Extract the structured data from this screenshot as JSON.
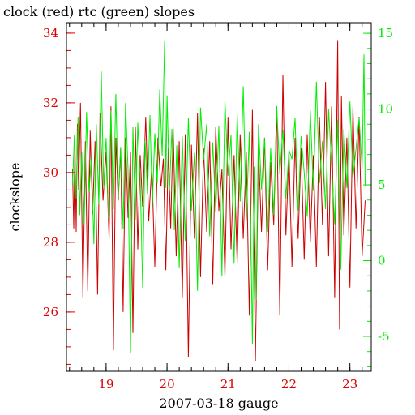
{
  "colors": {
    "left_axis": "#dd0000",
    "right_axis": "#00ee00",
    "series_red": "#cc0000",
    "series_green": "#00ee00",
    "frame": "#000000"
  },
  "chart_data": {
    "type": "line",
    "title": "clock (red) rtc (green) slopes",
    "xlabel": "2007-03-18 gauge",
    "ylabel": "clockslope",
    "xlim": [
      18.35,
      23.35
    ],
    "ylim": [
      24.3,
      34.3
    ],
    "ylim_right": [
      -7.3,
      15.7
    ],
    "x_ticks": [
      "19",
      "20",
      "21",
      "22",
      "23"
    ],
    "y_ticks": [
      "26",
      "28",
      "30",
      "32",
      "34"
    ],
    "y_ticks_right": [
      "-5",
      "0",
      "5",
      "10",
      "15"
    ],
    "grid": false,
    "series": [
      {
        "name": "clock",
        "axis": "left",
        "x": [
          18.45,
          18.47,
          18.49,
          18.51,
          18.53,
          18.55,
          18.58,
          18.62,
          18.66,
          18.7,
          18.74,
          18.78,
          18.82,
          18.86,
          18.9,
          18.95,
          19.0,
          19.05,
          19.08,
          19.12,
          19.16,
          19.2,
          19.24,
          19.28,
          19.32,
          19.36,
          19.4,
          19.44,
          19.48,
          19.52,
          19.56,
          19.6,
          19.65,
          19.7,
          19.75,
          19.8,
          19.85,
          19.9,
          19.94,
          19.98,
          20.02,
          20.06,
          20.1,
          20.15,
          20.2,
          20.25,
          20.3,
          20.35,
          20.4,
          20.45,
          20.5,
          20.55,
          20.6,
          20.65,
          20.7,
          20.75,
          20.8,
          20.85,
          20.9,
          20.95,
          21.0,
          21.05,
          21.1,
          21.15,
          21.2,
          21.25,
          21.3,
          21.35,
          21.4,
          21.45,
          21.5,
          21.55,
          21.6,
          21.65,
          21.7,
          21.75,
          21.8,
          21.85,
          21.9,
          21.95,
          22.0,
          22.05,
          22.1,
          22.15,
          22.2,
          22.25,
          22.3,
          22.35,
          22.4,
          22.45,
          22.5,
          22.55,
          22.6,
          22.65,
          22.7,
          22.75,
          22.8,
          22.83,
          22.86,
          22.9,
          22.95,
          23.0,
          23.05,
          23.1,
          23.15,
          23.2,
          23.25
        ],
        "y": [
          30.1,
          28.4,
          30.8,
          28.3,
          31.4,
          29.5,
          32.0,
          26.4,
          30.9,
          26.6,
          31.2,
          28.8,
          30.9,
          26.5,
          31.7,
          29.2,
          30.6,
          28.1,
          31.9,
          24.9,
          31.0,
          29.2,
          30.7,
          26.0,
          31.0,
          28.7,
          30.6,
          25.4,
          31.3,
          27.8,
          30.5,
          29.0,
          31.6,
          28.6,
          30.2,
          27.3,
          31.0,
          29.6,
          30.4,
          27.2,
          30.7,
          28.4,
          31.3,
          27.6,
          30.9,
          26.4,
          31.1,
          24.7,
          30.8,
          28.1,
          31.7,
          27.0,
          30.7,
          28.3,
          30.9,
          26.8,
          31.3,
          28.9,
          30.1,
          27.0,
          31.6,
          27.8,
          30.5,
          27.4,
          31.1,
          28.1,
          30.6,
          25.9,
          31.8,
          24.6,
          30.7,
          28.3,
          31.0,
          27.2,
          30.3,
          28.5,
          31.9,
          25.9,
          32.8,
          28.2,
          30.6,
          27.3,
          31.0,
          28.1,
          30.7,
          27.5,
          31.1,
          28.0,
          30.5,
          27.3,
          31.6,
          28.5,
          32.6,
          27.6,
          31.9,
          26.4,
          33.8,
          25.5,
          32.2,
          28.2,
          31.0,
          26.7,
          31.9,
          28.4,
          31.6,
          27.6,
          29.2
        ]
      },
      {
        "name": "rtc",
        "axis": "right",
        "x": [
          18.45,
          18.48,
          18.51,
          18.54,
          18.57,
          18.6,
          18.64,
          18.68,
          18.72,
          18.76,
          18.8,
          18.84,
          18.88,
          18.92,
          18.96,
          19.0,
          19.04,
          19.08,
          19.12,
          19.16,
          19.2,
          19.24,
          19.28,
          19.32,
          19.36,
          19.4,
          19.44,
          19.48,
          19.52,
          19.56,
          19.6,
          19.64,
          19.68,
          19.72,
          19.76,
          19.8,
          19.84,
          19.88,
          19.92,
          19.96,
          19.98,
          20.0,
          20.04,
          20.08,
          20.12,
          20.16,
          20.2,
          20.25,
          20.3,
          20.35,
          20.4,
          20.45,
          20.5,
          20.55,
          20.6,
          20.65,
          20.7,
          20.75,
          20.8,
          20.85,
          20.9,
          20.95,
          21.0,
          21.05,
          21.1,
          21.15,
          21.2,
          21.25,
          21.3,
          21.35,
          21.4,
          21.43,
          21.46,
          21.5,
          21.55,
          21.6,
          21.65,
          21.7,
          21.75,
          21.8,
          21.85,
          21.9,
          21.95,
          22.0,
          22.05,
          22.1,
          22.15,
          22.2,
          22.25,
          22.3,
          22.35,
          22.4,
          22.45,
          22.5,
          22.55,
          22.6,
          22.65,
          22.7,
          22.75,
          22.8,
          22.85,
          22.9,
          22.95,
          23.0,
          23.05,
          23.1,
          23.15,
          23.2,
          23.23,
          23.25
        ],
        "y": [
          5.0,
          8.3,
          4.1,
          9.5,
          3.0,
          7.2,
          2.4,
          9.8,
          4.5,
          6.8,
          1.1,
          9.0,
          3.7,
          12.5,
          4.8,
          8.1,
          2.8,
          9.9,
          3.4,
          11.0,
          4.2,
          7.5,
          2.1,
          10.4,
          6.0,
          -6.1,
          8.8,
          2.7,
          9.1,
          5.4,
          -1.8,
          7.9,
          4.4,
          9.6,
          3.6,
          8.4,
          5.1,
          11.3,
          6.9,
          14.5,
          4.8,
          10.9,
          4.6,
          8.7,
          2.0,
          7.6,
          -0.5,
          8.2,
          1.3,
          9.4,
          3.3,
          7.1,
          -2.0,
          10.1,
          6.6,
          9.0,
          1.6,
          7.8,
          3.2,
          8.9,
          -1.0,
          10.6,
          5.6,
          8.3,
          -0.2,
          9.7,
          3.9,
          11.5,
          2.6,
          8.5,
          -5.5,
          6.2,
          -2.6,
          9.0,
          4.7,
          8.1,
          1.9,
          7.4,
          3.0,
          10.2,
          5.7,
          8.6,
          4.1,
          7.3,
          6.7,
          9.4,
          3.3,
          8.2,
          5.8,
          2.9,
          9.9,
          4.6,
          11.8,
          5.1,
          7.9,
          3.4,
          10.0,
          6.3,
          2.4,
          9.3,
          -0.6,
          8.7,
          4.8,
          10.5,
          5.5,
          7.4,
          9.4,
          6.1,
          13.6,
          4.9
        ]
      }
    ]
  }
}
